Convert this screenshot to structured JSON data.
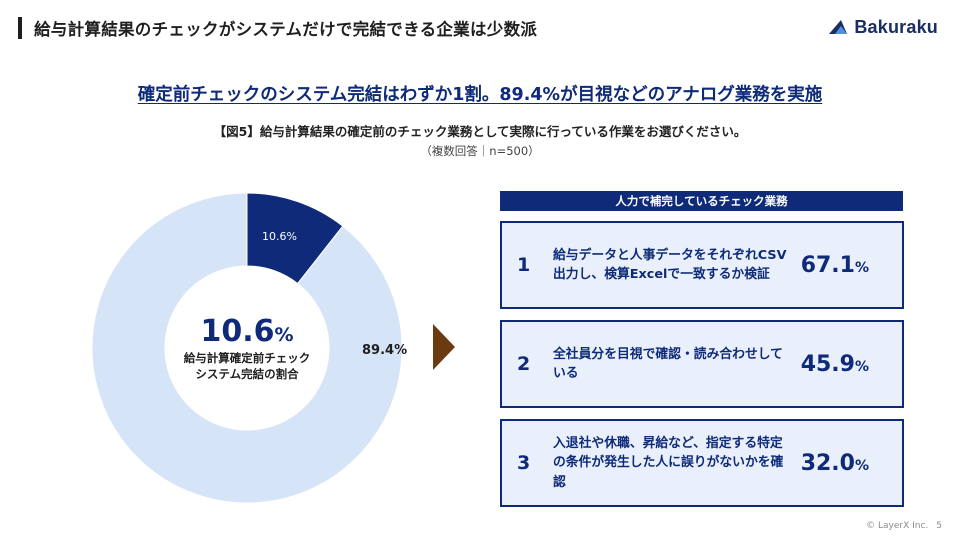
{
  "header": {
    "title": "給与計算結果のチェックがシステムだけで完結できる企業は少数派",
    "logo_text": "Bakuraku"
  },
  "headline": "確定前チェックのシステム完結はわずか1割。89.4%が目視などのアナログ業務を実施",
  "figure": {
    "caption": "【図5】給与計算結果の確定前のチェック業務として実際に行っている作業をお選びください。",
    "note": "（複数回答｜n=500）"
  },
  "donut": {
    "center_value": "10.6",
    "center_unit": "%",
    "center_label": "給与計算確定前チェック\nシステム完結の割合"
  },
  "chart_data": {
    "type": "pie",
    "slices": [
      {
        "label": "10.6%",
        "value": 10.6,
        "color": "#0e2a78"
      },
      {
        "label": "89.4%",
        "value": 89.4,
        "color": "#d6e4f7"
      }
    ]
  },
  "tasks": {
    "header": "人力で補完しているチェック業務",
    "items": [
      {
        "rank": "1",
        "text": "給与データと人事データをそれぞれCSV出力し、検算Excelで一致するか検証",
        "value": "67.1",
        "unit": "%"
      },
      {
        "rank": "2",
        "text": "全社員分を目視で確認・読み合わせしている",
        "value": "45.9",
        "unit": "%"
      },
      {
        "rank": "3",
        "text": "入退社や休職、昇給など、指定する特定の条件が発生した人に誤りがないかを確認",
        "value": "32.0",
        "unit": "%"
      }
    ]
  },
  "footer": {
    "copyright": "© LayerX Inc.",
    "page": "5"
  },
  "colors": {
    "primary": "#0e2a78",
    "light_fill": "#d6e4f7",
    "card_fill": "#e9f0fb",
    "arrow": "#6b3a10"
  }
}
